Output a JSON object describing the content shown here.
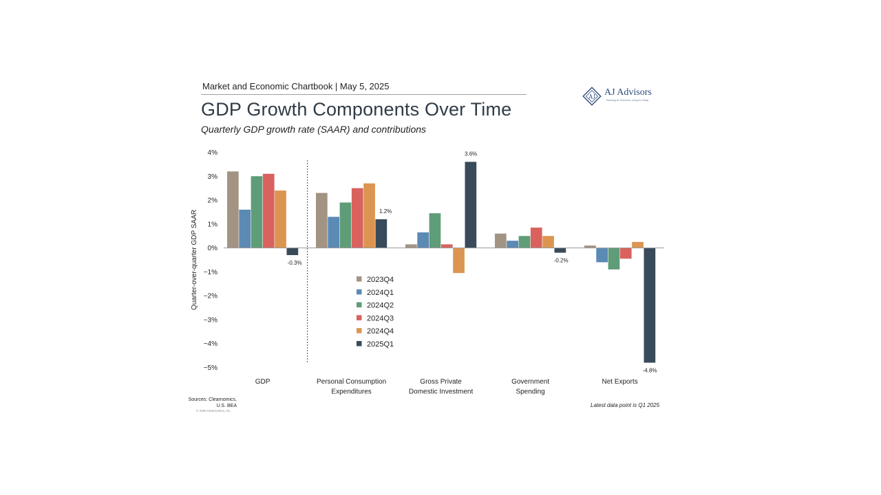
{
  "header": {
    "chartbook": "Market and Economic Chartbook | May 5, 2025",
    "title": "GDP Growth Components Over Time",
    "subtitle": "Quarterly GDP growth rate (SAAR) and contributions"
  },
  "logo": {
    "name": "AJ Advisors",
    "tagline": "Planning for Tomorrow, Living for Today"
  },
  "footer": {
    "sources_line1": "Sources: Clearnomics,",
    "sources_line2": "U.S. BEA",
    "copyright": "© 2025 Clearnomics, Inc.",
    "latest": "Latest data point is Q1 2025"
  },
  "chart_data": {
    "type": "bar",
    "ylabel": "Quarter-over-quarter GDP SAAR",
    "ylim": [
      -5,
      4
    ],
    "yticks": [
      4,
      3,
      2,
      1,
      0,
      -1,
      -2,
      -3,
      -4,
      -5
    ],
    "ytick_labels": [
      "4%",
      "3%",
      "2%",
      "1%",
      "0%",
      "−1%",
      "−2%",
      "−3%",
      "−4%",
      "−5%"
    ],
    "categories": [
      [
        "GDP"
      ],
      [
        "Personal Consumption",
        "Expenditures"
      ],
      [
        "Gross Private",
        "Domestic Investment"
      ],
      [
        "Government",
        "Spending"
      ],
      [
        "Net Exports"
      ]
    ],
    "series": [
      {
        "name": "2023Q4",
        "color": "#a39383",
        "values": [
          3.2,
          2.3,
          0.15,
          0.6,
          0.1
        ]
      },
      {
        "name": "2024Q1",
        "color": "#5b8ab5",
        "values": [
          1.6,
          1.3,
          0.65,
          0.3,
          -0.6
        ]
      },
      {
        "name": "2024Q2",
        "color": "#5f9c78",
        "values": [
          3.0,
          1.9,
          1.45,
          0.5,
          -0.9
        ]
      },
      {
        "name": "2024Q3",
        "color": "#d9625e",
        "values": [
          3.1,
          2.5,
          0.15,
          0.85,
          -0.45
        ]
      },
      {
        "name": "2024Q4",
        "color": "#dc9550",
        "values": [
          2.4,
          2.7,
          -1.05,
          0.5,
          0.25
        ]
      },
      {
        "name": "2025Q1",
        "color": "#394a5a",
        "values": [
          -0.3,
          1.2,
          3.6,
          -0.2,
          -4.8
        ]
      }
    ],
    "data_labels": [
      {
        "series": 5,
        "category": 0,
        "text": "-0.3%"
      },
      {
        "series": 5,
        "category": 1,
        "text": "1.2%"
      },
      {
        "series": 5,
        "category": 2,
        "text": "3.6%"
      },
      {
        "series": 5,
        "category": 3,
        "text": "-0.2%"
      },
      {
        "series": 5,
        "category": 4,
        "text": "-4.8%"
      }
    ],
    "separator_after_category": 0,
    "legend_position": "center"
  }
}
